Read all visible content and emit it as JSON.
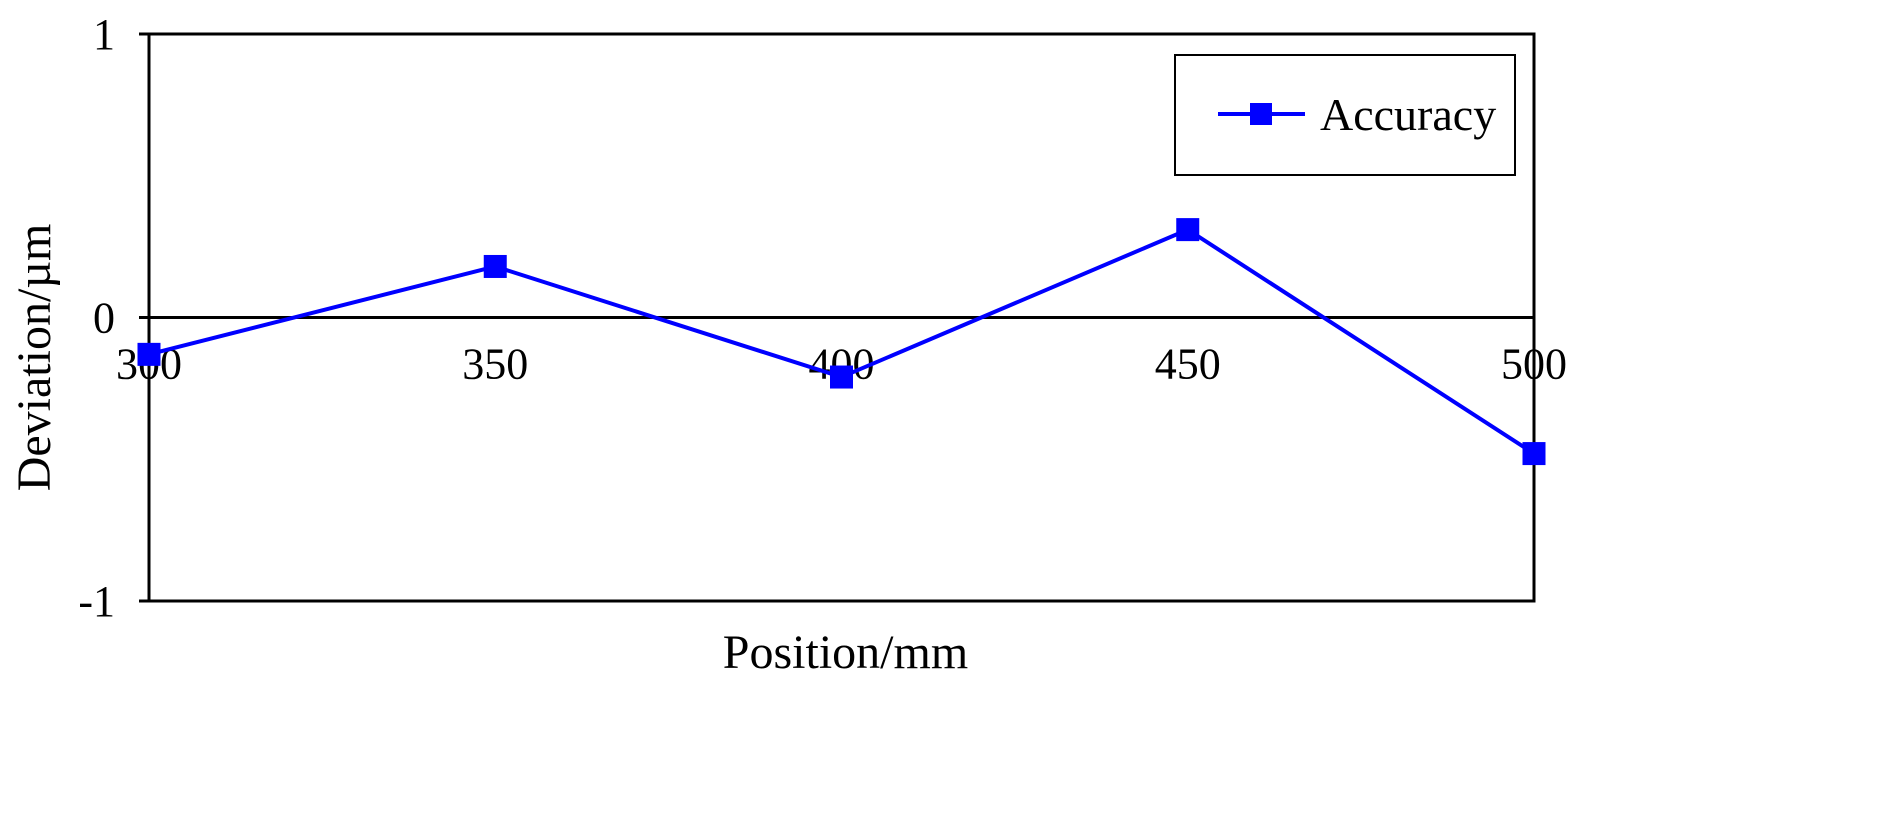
{
  "chart_data": {
    "type": "line",
    "xlabel": "Position/mm",
    "ylabel": "Deviation/µm",
    "x": [
      300,
      350,
      400,
      450,
      500
    ],
    "x_tick_labels": [
      "300",
      "350",
      "400",
      "450",
      "500"
    ],
    "y_tick_labels": [
      "1",
      "0",
      "-1"
    ],
    "y_ticks": [
      1,
      0,
      -1
    ],
    "xlim": [
      300,
      500
    ],
    "ylim": [
      -1,
      1
    ],
    "grid": false,
    "legend_position": "top-right",
    "series": [
      {
        "name": "Accuracy",
        "color": "#0000ff",
        "marker": "square",
        "values": [
          -0.13,
          0.18,
          -0.21,
          0.31,
          -0.48
        ]
      }
    ]
  }
}
